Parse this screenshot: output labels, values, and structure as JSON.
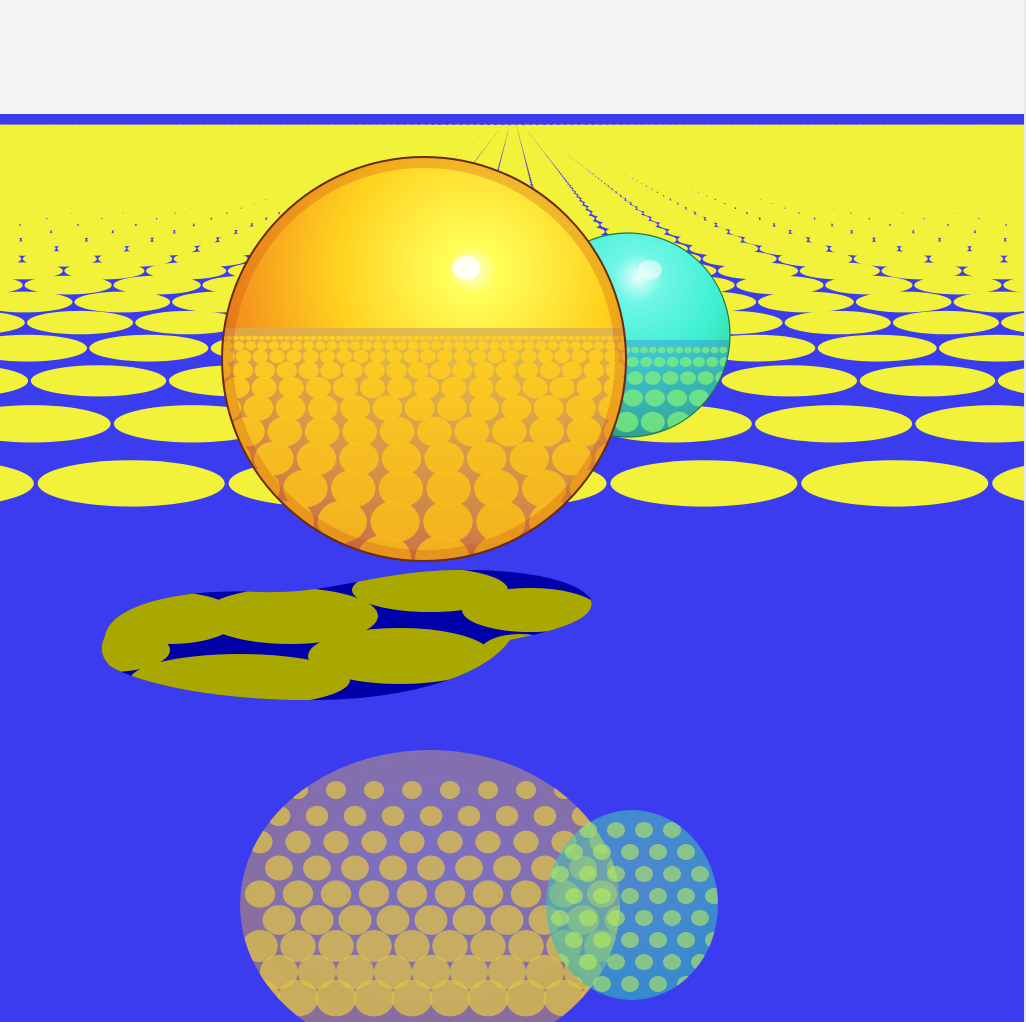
{
  "scene": {
    "description_type": "ray-traced render",
    "background_color": "#f4f4f4",
    "floor": {
      "pattern": "circles-on-grid",
      "circle_color": "#f2f23a",
      "gap_color": "#3b3bf0",
      "shadow_circle_color": "#a8a800",
      "shadow_gap_color": "#0000a8"
    },
    "spheres": [
      {
        "name": "large-orange-sphere",
        "highlight_color": "#fffbe0",
        "base_color": "#ffd21e",
        "edge_color": "#e8561a",
        "reflection_tint": "#d98a2a"
      },
      {
        "name": "small-cyan-sphere",
        "highlight_color": "#e6fffc",
        "base_color": "#3ef0d2",
        "edge_color": "#2fb36a",
        "reflection_tint": "#46c98a"
      }
    ]
  }
}
